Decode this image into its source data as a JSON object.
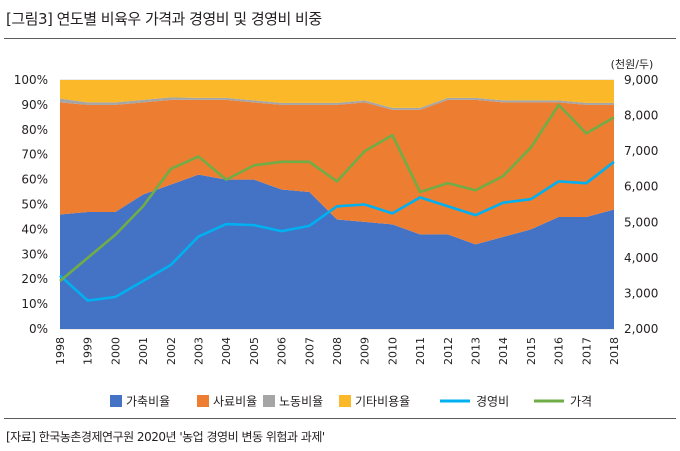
{
  "figure": {
    "title": "[그림3] 연도별 비육우 가격과 경영비 및 경영비 비중",
    "source": "[자료] 한국농촌경제연구원 2020년 '농업 경영비 변동 위험과 과제'"
  },
  "chart_data": {
    "type": "area",
    "x": [
      "1998",
      "1999",
      "2000",
      "2001",
      "2002",
      "2003",
      "2004",
      "2005",
      "2006",
      "2007",
      "2008",
      "2009",
      "2010",
      "2011",
      "2012",
      "2013",
      "2014",
      "2015",
      "2016",
      "2017",
      "2018"
    ],
    "left_axis": {
      "ticks": [
        "0%",
        "10%",
        "20%",
        "30%",
        "40%",
        "50%",
        "60%",
        "70%",
        "80%",
        "90%",
        "100%"
      ],
      "ylim": [
        0,
        100
      ]
    },
    "right_axis": {
      "unit": "(천원/두)",
      "ticks": [
        "2,000",
        "3,000",
        "4,000",
        "5,000",
        "6,000",
        "7,000",
        "8,000",
        "9,000"
      ],
      "ylim": [
        2000,
        9000
      ]
    },
    "grid": true,
    "legend_position": "bottom",
    "stacked_area_series": [
      {
        "name": "가축비율",
        "color": "#4472c4",
        "values": [
          46,
          47,
          47,
          54,
          58,
          62,
          60,
          60,
          56,
          55,
          44,
          43,
          42,
          38,
          38,
          34,
          37,
          40,
          45,
          45,
          48
        ]
      },
      {
        "name": "사료비율",
        "color": "#ed7d31",
        "values": [
          45,
          43,
          43,
          37,
          34,
          30,
          32,
          31,
          34,
          35,
          46,
          48,
          46,
          50,
          54,
          58,
          54,
          51,
          46,
          45,
          42
        ]
      },
      {
        "name": "노동비율",
        "color": "#a5a5a5",
        "values": [
          1.5,
          1,
          1,
          1,
          1,
          0.8,
          0.8,
          0.8,
          0.8,
          0.8,
          0.8,
          0.8,
          0.8,
          0.8,
          0.8,
          0.8,
          0.8,
          0.8,
          0.8,
          0.8,
          0.8
        ]
      },
      {
        "name": "기타비용율",
        "color": "#fbb829",
        "values": [
          7.5,
          9,
          9,
          8,
          7,
          7.2,
          7.2,
          8.2,
          9.2,
          9.2,
          9.2,
          8.2,
          11.2,
          11.2,
          7.2,
          7.2,
          8.2,
          8.2,
          8.2,
          9.2,
          9.2
        ]
      }
    ],
    "line_series": [
      {
        "name": "경영비",
        "color": "#00b0f0",
        "axis": "right",
        "values": [
          3500,
          2800,
          2900,
          3350,
          3800,
          4600,
          4950,
          4920,
          4750,
          4900,
          5450,
          5500,
          5250,
          5700,
          5450,
          5200,
          5550,
          5650,
          6150,
          6100,
          6700
        ]
      },
      {
        "name": "가격",
        "color": "#70ad47",
        "axis": "right",
        "values": [
          3350,
          4000,
          4650,
          5450,
          6500,
          6850,
          6200,
          6600,
          6700,
          6700,
          6150,
          7000,
          7450,
          5850,
          6100,
          5900,
          6300,
          7100,
          8300,
          7500,
          7950
        ]
      }
    ]
  }
}
